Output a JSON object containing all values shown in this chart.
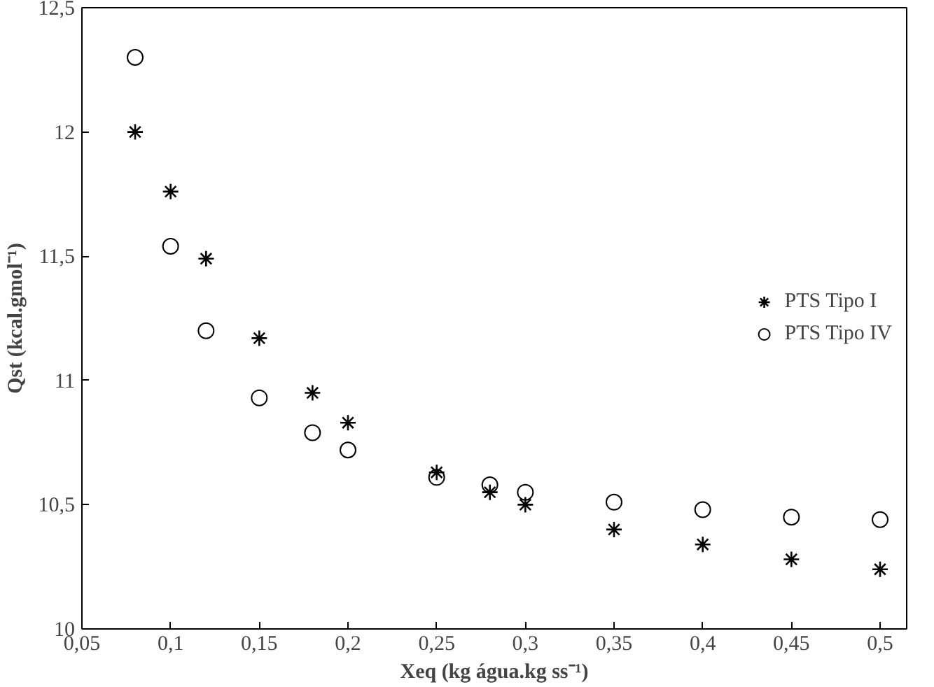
{
  "chart_data": {
    "type": "scatter",
    "xlabel": "Xeq (kg água.kg ss⁻¹)",
    "ylabel": "Qst (kcal.gmol⁻¹)",
    "x": [
      0.08,
      0.1,
      0.12,
      0.15,
      0.18,
      0.2,
      0.25,
      0.28,
      0.3,
      0.35,
      0.4,
      0.45,
      0.5
    ],
    "series": [
      {
        "name": "PTS Tipo I",
        "color": "#000000",
        "marker": "cross",
        "values": [
          12.0,
          11.76,
          11.49,
          11.17,
          10.95,
          10.83,
          10.63,
          10.55,
          10.5,
          10.4,
          10.34,
          10.28,
          10.24
        ]
      },
      {
        "name": "PTS Tipo IV",
        "color": "#000000",
        "marker": "circle",
        "values": [
          12.3,
          11.54,
          11.2,
          10.93,
          10.79,
          10.72,
          10.61,
          10.58,
          10.55,
          10.51,
          10.48,
          10.45,
          10.44
        ]
      }
    ],
    "xlim": [
      0.05,
      0.515
    ],
    "ylim": [
      10,
      12.5
    ],
    "xticks": [
      {
        "value": 0.05,
        "label": "0,05"
      },
      {
        "value": 0.1,
        "label": "0,1"
      },
      {
        "value": 0.15,
        "label": "0,15"
      },
      {
        "value": 0.2,
        "label": "0,2"
      },
      {
        "value": 0.25,
        "label": "0,25"
      },
      {
        "value": 0.3,
        "label": "0,3"
      },
      {
        "value": 0.35,
        "label": "0,35"
      },
      {
        "value": 0.4,
        "label": "0,4"
      },
      {
        "value": 0.45,
        "label": "0,45"
      },
      {
        "value": 0.5,
        "label": "0,5"
      }
    ],
    "yticks": [
      {
        "value": 10,
        "label": "10"
      },
      {
        "value": 10.5,
        "label": "10,5"
      },
      {
        "value": 11,
        "label": "11"
      },
      {
        "value": 11.5,
        "label": "11,5"
      },
      {
        "value": 12,
        "label": "12"
      },
      {
        "value": 12.5,
        "label": "12,5"
      }
    ],
    "grid": false,
    "legend": "right"
  }
}
